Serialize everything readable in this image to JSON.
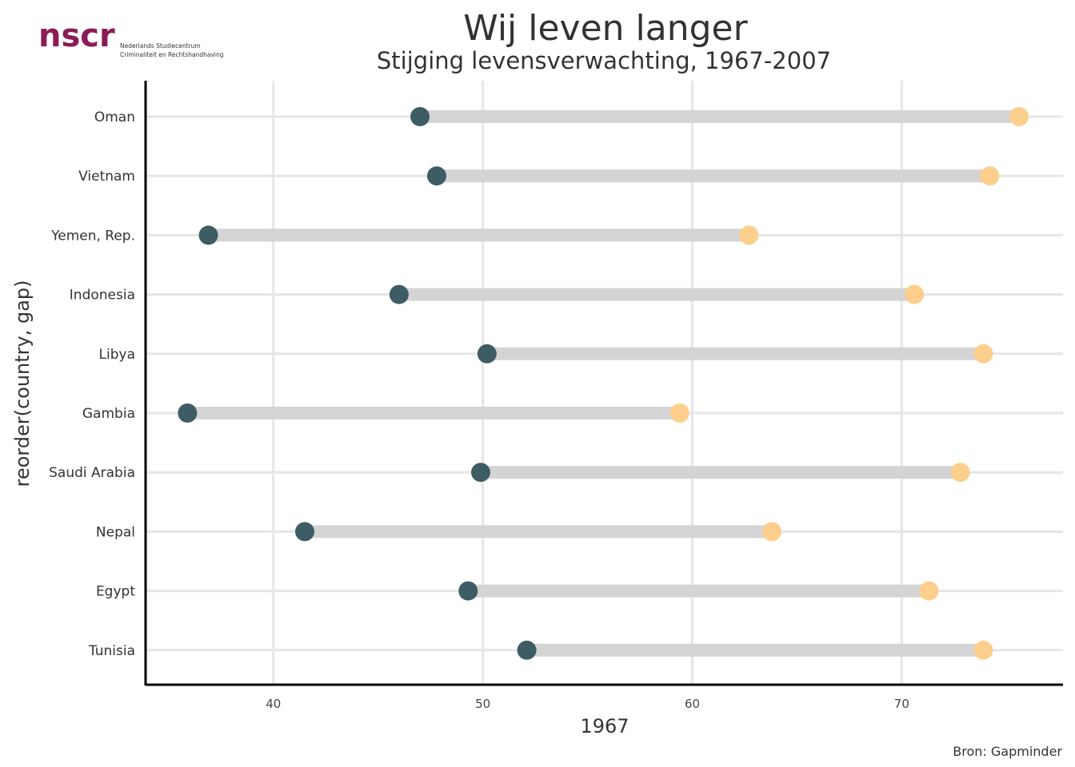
{
  "logo": {
    "text": "nscr",
    "line1": "Nederlands Studiecentrum",
    "line2": "Criminaliteit en Rechtshandhaving",
    "color": "#8a1c57"
  },
  "caption": "Bron: Gapminder",
  "colors": {
    "start": "#3d5c63",
    "end": "#fdcf8c",
    "segment": "#d4d4d4",
    "grid": "#e6e6e6",
    "axis": "#000000"
  },
  "chart_data": {
    "type": "dumbbell",
    "title": "Wij leven langer",
    "subtitle": "Stijging levensverwachting, 1967-2007",
    "xlabel": "1967",
    "ylabel": "reorder(country, gap)",
    "xlim": [
      33.9,
      77.7
    ],
    "xticks": [
      40,
      50,
      60,
      70
    ],
    "grid": true,
    "countries": [
      "Oman",
      "Vietnam",
      "Yemen, Rep.",
      "Indonesia",
      "Libya",
      "Gambia",
      "Saudi Arabia",
      "Nepal",
      "Egypt",
      "Tunisia"
    ],
    "series": [
      {
        "name": "1967",
        "values": [
          47.0,
          47.8,
          36.9,
          46.0,
          50.2,
          35.9,
          49.9,
          41.5,
          49.3,
          52.1
        ]
      },
      {
        "name": "2007",
        "values": [
          75.6,
          74.2,
          62.7,
          70.6,
          73.9,
          59.4,
          72.8,
          63.8,
          71.3,
          73.9
        ]
      }
    ]
  }
}
